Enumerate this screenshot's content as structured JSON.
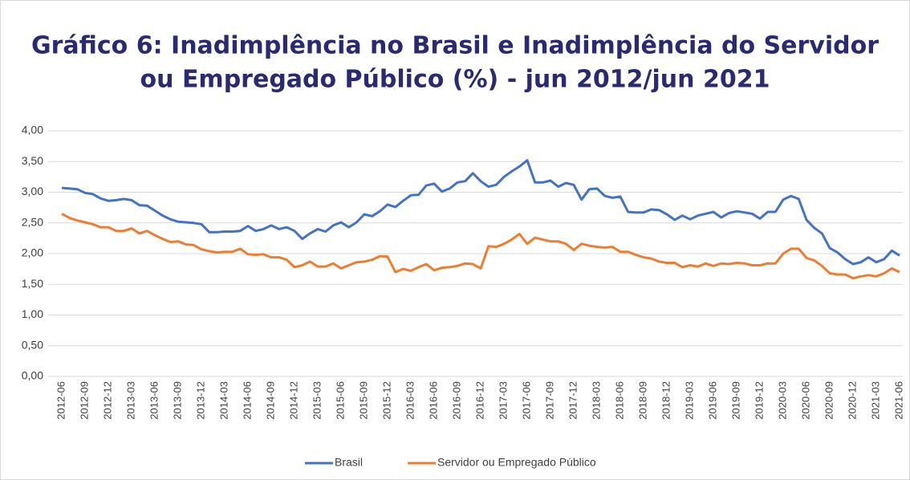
{
  "chart_data": {
    "type": "line",
    "title": [
      "Gráfico 6: Inadimplência no Brasil e Inadimplência do Servidor",
      "ou Empregado Público (%) - jun 2012/jun 2021"
    ],
    "categories": [
      "2012-06",
      null,
      null,
      "2012-09",
      null,
      null,
      "2012-12",
      null,
      null,
      "2013-03",
      null,
      null,
      "2013-06",
      null,
      null,
      "2013-09",
      null,
      null,
      "2013-12",
      null,
      null,
      "2014-03",
      null,
      null,
      "2014-06",
      null,
      null,
      "2014-09",
      null,
      null,
      "2014-12",
      null,
      null,
      "2015-03",
      null,
      null,
      "2015-06",
      null,
      null,
      "2015-09",
      null,
      null,
      "2015-12",
      null,
      null,
      "2016-03",
      null,
      null,
      "2016-06",
      null,
      null,
      "2016-09",
      null,
      null,
      "2016-12",
      null,
      null,
      "2017-03",
      null,
      null,
      "2017-06",
      null,
      null,
      "2017-09",
      null,
      null,
      "2017-12",
      null,
      null,
      "2018-03",
      null,
      null,
      "2018-06",
      null,
      null,
      "2018-09",
      null,
      null,
      "2018-12",
      null,
      null,
      "2019-03",
      null,
      null,
      "2019-06",
      null,
      null,
      "2019-09",
      null,
      null,
      "2019-12",
      null,
      null,
      "2020-03",
      null,
      null,
      "2020-06",
      null,
      null,
      "2020-09",
      null,
      null,
      "2020-12",
      null,
      null,
      "2021-03",
      null,
      null,
      "2021-06"
    ],
    "series": [
      {
        "name": "Brasil",
        "color": "#4472c4",
        "values": [
          3.07,
          3.06,
          3.05,
          2.99,
          2.97,
          2.9,
          2.86,
          2.87,
          2.89,
          2.87,
          2.79,
          2.78,
          2.7,
          2.62,
          2.56,
          2.52,
          2.51,
          2.5,
          2.48,
          2.35,
          2.35,
          2.36,
          2.36,
          2.37,
          2.45,
          2.37,
          2.4,
          2.46,
          2.4,
          2.43,
          2.37,
          2.24,
          2.33,
          2.4,
          2.36,
          2.46,
          2.51,
          2.43,
          2.51,
          2.64,
          2.61,
          2.69,
          2.8,
          2.76,
          2.86,
          2.95,
          2.96,
          3.11,
          3.14,
          3.01,
          3.06,
          3.16,
          3.18,
          3.31,
          3.18,
          3.09,
          3.12,
          3.25,
          3.34,
          3.42,
          3.52,
          3.16,
          3.16,
          3.19,
          3.09,
          3.15,
          3.12,
          2.88,
          3.05,
          3.06,
          2.94,
          2.91,
          2.93,
          2.68,
          2.67,
          2.67,
          2.72,
          2.71,
          2.64,
          2.55,
          2.62,
          2.56,
          2.62,
          2.65,
          2.68,
          2.59,
          2.66,
          2.69,
          2.67,
          2.65,
          2.57,
          2.68,
          2.68,
          2.88,
          2.94,
          2.89,
          2.55,
          2.42,
          2.33,
          2.09,
          2.02,
          1.91,
          1.83,
          1.86,
          1.94,
          1.86,
          1.91,
          2.05,
          1.97
        ]
      },
      {
        "name": "Servidor ou Empregado Público",
        "color": "#ed7d31",
        "values": [
          2.65,
          2.58,
          2.54,
          2.51,
          2.48,
          2.43,
          2.43,
          2.37,
          2.37,
          2.41,
          2.33,
          2.37,
          2.3,
          2.24,
          2.19,
          2.2,
          2.15,
          2.14,
          2.07,
          2.04,
          2.02,
          2.03,
          2.03,
          2.08,
          1.99,
          1.98,
          1.99,
          1.94,
          1.94,
          1.9,
          1.78,
          1.81,
          1.87,
          1.79,
          1.79,
          1.84,
          1.76,
          1.81,
          1.86,
          1.87,
          1.9,
          1.96,
          1.95,
          1.7,
          1.75,
          1.72,
          1.78,
          1.83,
          1.73,
          1.77,
          1.78,
          1.8,
          1.84,
          1.83,
          1.76,
          2.12,
          2.11,
          2.16,
          2.23,
          2.32,
          2.16,
          2.26,
          2.23,
          2.2,
          2.2,
          2.16,
          2.06,
          2.16,
          2.13,
          2.11,
          2.1,
          2.11,
          2.03,
          2.03,
          1.98,
          1.94,
          1.92,
          1.87,
          1.85,
          1.85,
          1.78,
          1.81,
          1.79,
          1.84,
          1.8,
          1.84,
          1.83,
          1.85,
          1.84,
          1.81,
          1.81,
          1.84,
          1.84,
          2.0,
          2.08,
          2.08,
          1.93,
          1.89,
          1.8,
          1.68,
          1.66,
          1.66,
          1.6,
          1.63,
          1.65,
          1.63,
          1.68,
          1.76,
          1.7
        ]
      }
    ],
    "ylim": [
      0,
      4
    ],
    "yticks": [
      {
        "value": 0,
        "label": "0,00"
      },
      {
        "value": 0.5,
        "label": "0,50"
      },
      {
        "value": 1,
        "label": "1,00"
      },
      {
        "value": 1.5,
        "label": "1,50"
      },
      {
        "value": 2,
        "label": "2,00"
      },
      {
        "value": 2.5,
        "label": "2,50"
      },
      {
        "value": 3,
        "label": "3,00"
      },
      {
        "value": 3.5,
        "label": "3,50"
      },
      {
        "value": 4,
        "label": "4,00"
      }
    ],
    "grid": true
  }
}
